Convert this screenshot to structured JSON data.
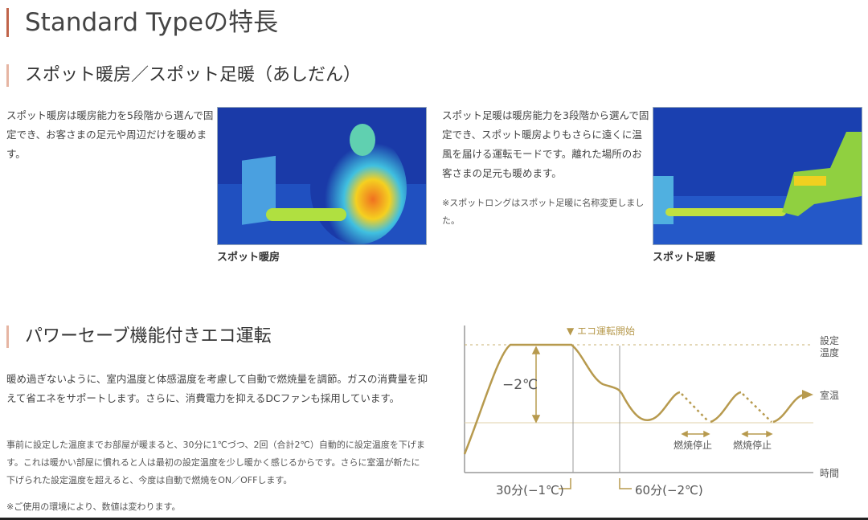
{
  "page_title": "Standard Typeの特長",
  "spot": {
    "heading": "スポット暖房／スポット足暖（あしだん）",
    "left": {
      "text": "スポット暖房は暖房能力を5段階から選んで固定でき、お客さまの足元や周辺だけを暖めます。",
      "caption": "スポット暖房"
    },
    "right": {
      "text": "スポット足暖は暖房能力を3段階から選んで固定でき、スポット暖房よりもさらに遠くに温風を届ける運転モードです。離れた場所のお客さまの足元も暖めます。",
      "note": "※スポットロングはスポット足暖に名称変更しました。",
      "caption": "スポット足暖"
    }
  },
  "eco": {
    "heading": "パワーセーブ機能付きエコ運転",
    "para1": "暖め過ぎないように、室内温度と体感温度を考慮して自動で燃焼量を調節。ガスの消費量を抑えて省エネをサポートします。さらに、消費電力を抑えるDCファンも採用しています。",
    "para2": "事前に設定した温度までお部屋が暖まると、30分に1℃づつ、2回（合計2℃）自動的に設定温度を下げます。これは暖かい部屋に慣れると人は最初の設定温度を少し暖かく感じるからです。さらに室温が新たに下げられた設定温度を超えると、今度は自動で燃焼をON／OFFします。",
    "note": "※ご使用の環境により、数値は変わります。"
  },
  "diagram": {
    "eco_start": "▼ エコ運転開始",
    "set_temp": [
      "設定",
      "温度"
    ],
    "room_temp": "室温",
    "time": "時間",
    "delta": "−2℃",
    "stop1": "燃焼停止",
    "stop2": "燃焼停止",
    "mark30": "30分(−1℃)",
    "mark60": "60分(−2℃)",
    "colors": {
      "curve": "#b79a4e",
      "axis": "#999999",
      "accent": "#c0644a"
    }
  }
}
